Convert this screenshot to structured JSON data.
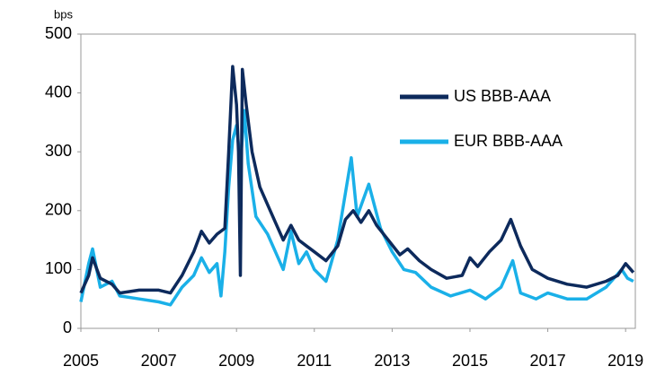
{
  "chart_data": {
    "type": "line",
    "y_unit": "bps",
    "xlim": [
      2005,
      2019.25
    ],
    "ylim": [
      0,
      500
    ],
    "xticks": [
      2005,
      2007,
      2009,
      2011,
      2013,
      2015,
      2017,
      2019
    ],
    "yticks": [
      0,
      100,
      200,
      300,
      400,
      500
    ],
    "legend": "upper right",
    "series": [
      {
        "name": "US BBB-AAA",
        "color": "#0d2a5c",
        "x": [
          2005,
          2005.2,
          2005.3,
          2005.5,
          2005.8,
          2006,
          2006.5,
          2007,
          2007.3,
          2007.6,
          2007.9,
          2008.1,
          2008.3,
          2008.5,
          2008.7,
          2008.8,
          2008.9,
          2009.0,
          2009.05,
          2009.1,
          2009.15,
          2009.25,
          2009.4,
          2009.6,
          2009.8,
          2010,
          2010.2,
          2010.4,
          2010.6,
          2010.8,
          2011,
          2011.3,
          2011.6,
          2011.8,
          2012,
          2012.2,
          2012.4,
          2012.6,
          2012.9,
          2013.2,
          2013.4,
          2013.7,
          2014,
          2014.4,
          2014.8,
          2015,
          2015.2,
          2015.5,
          2015.8,
          2016.05,
          2016.3,
          2016.6,
          2017,
          2017.5,
          2018,
          2018.5,
          2018.8,
          2019,
          2019.2
        ],
        "values": [
          60,
          90,
          120,
          85,
          75,
          60,
          65,
          65,
          60,
          90,
          130,
          165,
          145,
          160,
          170,
          300,
          445,
          380,
          300,
          90,
          440,
          380,
          300,
          240,
          210,
          180,
          150,
          175,
          150,
          140,
          130,
          115,
          140,
          185,
          200,
          180,
          200,
          175,
          150,
          125,
          135,
          115,
          100,
          85,
          90,
          120,
          105,
          130,
          150,
          185,
          140,
          100,
          85,
          75,
          70,
          80,
          90,
          110,
          95
        ]
      },
      {
        "name": "EUR BBB-AAA",
        "color": "#1ab0e8",
        "x": [
          2005,
          2005.2,
          2005.3,
          2005.5,
          2005.8,
          2006,
          2006.5,
          2007,
          2007.3,
          2007.6,
          2007.9,
          2008.1,
          2008.3,
          2008.5,
          2008.6,
          2008.7,
          2008.8,
          2008.9,
          2009.0,
          2009.1,
          2009.2,
          2009.3,
          2009.5,
          2009.8,
          2010,
          2010.2,
          2010.4,
          2010.6,
          2010.8,
          2011,
          2011.3,
          2011.6,
          2011.8,
          2011.95,
          2012.1,
          2012.4,
          2012.7,
          2013,
          2013.3,
          2013.6,
          2014,
          2014.5,
          2015,
          2015.4,
          2015.8,
          2016.1,
          2016.3,
          2016.7,
          2017,
          2017.5,
          2018,
          2018.5,
          2018.9,
          2019.05,
          2019.2
        ],
        "values": [
          45,
          110,
          135,
          70,
          80,
          55,
          50,
          45,
          40,
          70,
          90,
          120,
          95,
          110,
          55,
          130,
          240,
          320,
          345,
          280,
          370,
          280,
          190,
          160,
          130,
          100,
          165,
          110,
          130,
          100,
          80,
          150,
          230,
          290,
          190,
          245,
          170,
          130,
          100,
          95,
          70,
          55,
          65,
          50,
          70,
          115,
          60,
          50,
          60,
          50,
          50,
          70,
          100,
          85,
          80
        ]
      }
    ]
  }
}
